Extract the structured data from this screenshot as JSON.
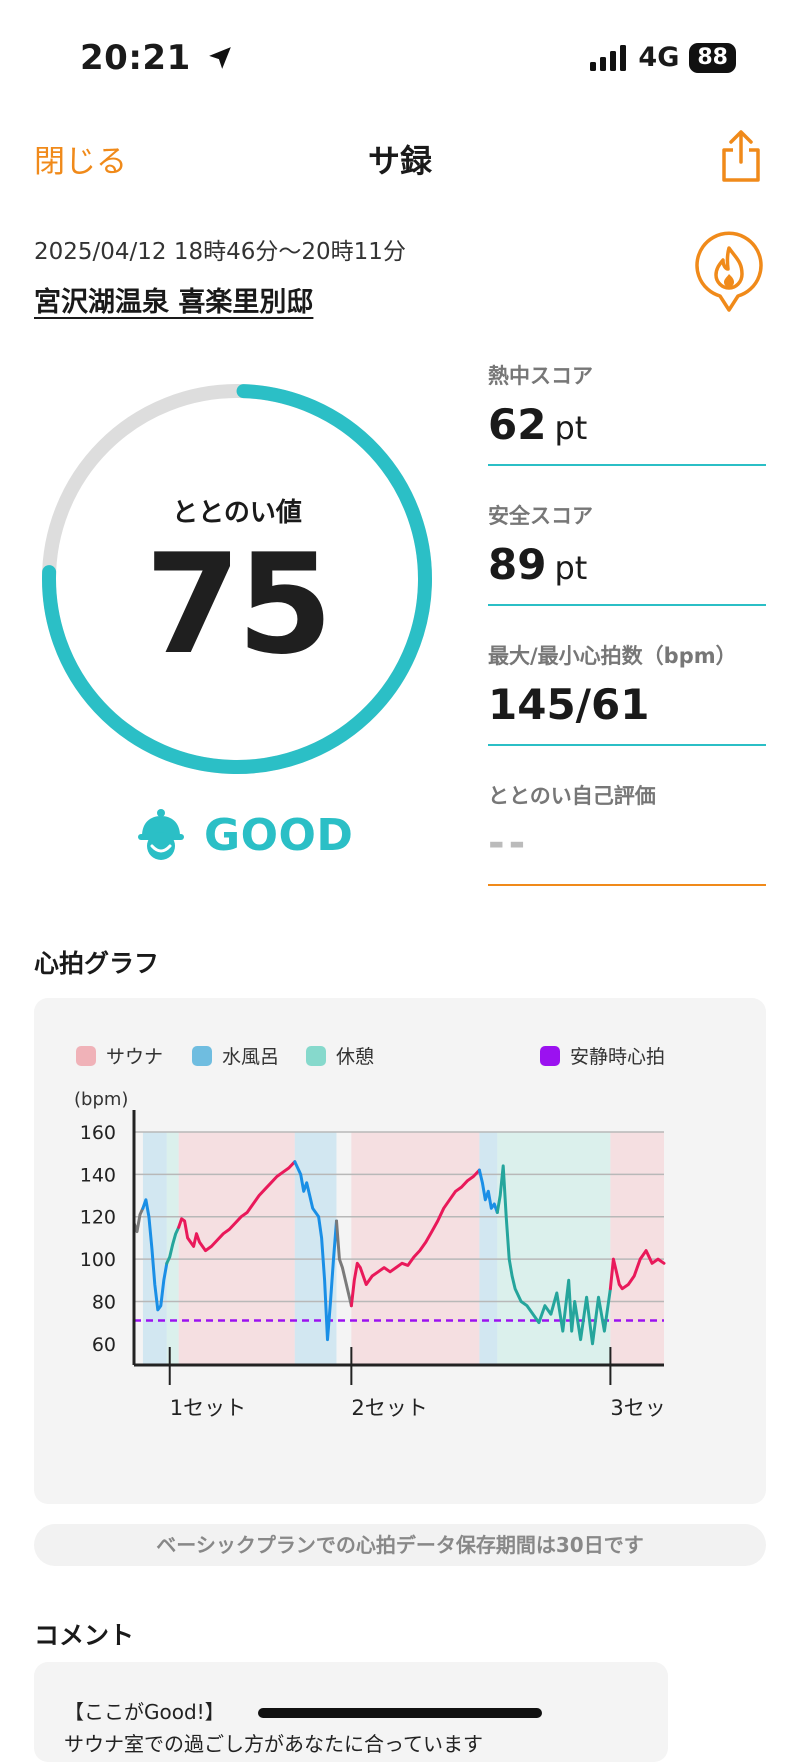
{
  "status_bar": {
    "time": "20:21",
    "network": "4G",
    "battery": "88"
  },
  "nav": {
    "close_label": "閉じる",
    "title": "サ録"
  },
  "visit": {
    "datetime": "2025/04/12 18時46分〜20時11分",
    "place": "宮沢湖温泉 喜楽里別邸"
  },
  "gauge": {
    "label": "ととのい値",
    "value": "75",
    "progress": 0.75,
    "grade": "GOOD"
  },
  "stats": [
    {
      "label": "熱中スコア",
      "value": "62",
      "unit": "pt"
    },
    {
      "label": "安全スコア",
      "value": "89",
      "unit": "pt"
    },
    {
      "label": "最大/最小心拍数（bpm）",
      "value": "145/61",
      "unit": ""
    },
    {
      "label": "ととのい自己評価",
      "value": "--",
      "unit": ""
    }
  ],
  "heart_graph": {
    "title": "心拍グラフ"
  },
  "chart_data": {
    "type": "line",
    "ylabel": "(bpm)",
    "ylim": [
      50,
      160
    ],
    "yticks": [
      60,
      80,
      100,
      120,
      140,
      160
    ],
    "legend": [
      {
        "name": "サウナ",
        "color": "#f0b2b8"
      },
      {
        "name": "水風呂",
        "color": "#6fbde0"
      },
      {
        "name": "休憩",
        "color": "#86d9cc"
      },
      {
        "name": "安静時心拍",
        "color": "#9b12f0"
      }
    ],
    "resting_hr": 71,
    "set_labels": [
      "1セット",
      "2セット",
      "3セッ"
    ],
    "colors": {
      "sauna": "#e9195a",
      "water": "#1a8fe6",
      "rest": "#25a59c",
      "other": "#7a7a7a"
    },
    "t_range": [
      0,
      85
    ],
    "segments": [
      {
        "phase": "other",
        "points": [
          [
            0,
            117
          ],
          [
            0.5,
            113
          ],
          [
            1,
            121
          ],
          [
            1.5,
            124
          ]
        ]
      },
      {
        "phase": "water",
        "points": [
          [
            1.5,
            124
          ],
          [
            2,
            128
          ],
          [
            2.5,
            120
          ],
          [
            3,
            105
          ],
          [
            3.5,
            88
          ],
          [
            4,
            76
          ],
          [
            4.5,
            78
          ],
          [
            5,
            90
          ],
          [
            5.5,
            98
          ]
        ]
      },
      {
        "phase": "rest",
        "points": [
          [
            5.5,
            98
          ],
          [
            6,
            101
          ],
          [
            6.5,
            107
          ],
          [
            7,
            112
          ],
          [
            7.5,
            115
          ]
        ]
      },
      {
        "phase": "sauna",
        "points": [
          [
            7.5,
            115
          ],
          [
            8,
            119
          ],
          [
            8.5,
            118
          ],
          [
            9,
            110
          ],
          [
            10,
            106
          ],
          [
            10.5,
            112
          ],
          [
            11,
            108
          ],
          [
            12,
            104
          ],
          [
            13,
            106
          ],
          [
            14,
            109
          ],
          [
            15,
            112
          ],
          [
            16,
            114
          ],
          [
            17,
            117
          ],
          [
            18,
            120
          ],
          [
            19,
            122
          ],
          [
            20,
            126
          ],
          [
            21,
            130
          ],
          [
            22,
            133
          ],
          [
            23,
            136
          ],
          [
            24,
            139
          ],
          [
            25,
            141
          ],
          [
            26,
            143
          ],
          [
            27,
            146
          ]
        ]
      },
      {
        "phase": "water",
        "points": [
          [
            27,
            146
          ],
          [
            28,
            140
          ],
          [
            28.5,
            132
          ],
          [
            29,
            136
          ],
          [
            29.5,
            130
          ],
          [
            30,
            124
          ],
          [
            31,
            120
          ],
          [
            31.5,
            110
          ],
          [
            32,
            90
          ],
          [
            32.5,
            62
          ],
          [
            33,
            80
          ],
          [
            33.5,
            100
          ],
          [
            34,
            118
          ]
        ]
      },
      {
        "phase": "other",
        "points": [
          [
            34,
            118
          ],
          [
            34.5,
            100
          ],
          [
            35,
            96
          ],
          [
            35.5,
            90
          ],
          [
            36,
            84
          ],
          [
            36.5,
            78
          ]
        ]
      },
      {
        "phase": "sauna",
        "points": [
          [
            36.5,
            78
          ],
          [
            37,
            90
          ],
          [
            37.5,
            98
          ],
          [
            38,
            96
          ],
          [
            39,
            88
          ],
          [
            40,
            92
          ],
          [
            41,
            94
          ],
          [
            42,
            96
          ],
          [
            43,
            94
          ],
          [
            44,
            96
          ],
          [
            45,
            98
          ],
          [
            46,
            97
          ],
          [
            47,
            101
          ],
          [
            48,
            104
          ],
          [
            49,
            108
          ],
          [
            50,
            113
          ],
          [
            51,
            118
          ],
          [
            52,
            124
          ],
          [
            53,
            128
          ],
          [
            54,
            132
          ],
          [
            55,
            134
          ],
          [
            56,
            137
          ],
          [
            57,
            139
          ],
          [
            58,
            142
          ]
        ]
      },
      {
        "phase": "water",
        "points": [
          [
            58,
            142
          ],
          [
            58.5,
            136
          ],
          [
            59,
            128
          ],
          [
            59.5,
            132
          ],
          [
            60,
            124
          ],
          [
            60.5,
            126
          ],
          [
            61,
            122
          ]
        ]
      },
      {
        "phase": "rest",
        "points": [
          [
            61,
            122
          ],
          [
            61.5,
            130
          ],
          [
            62,
            144
          ],
          [
            62.5,
            120
          ],
          [
            63,
            100
          ],
          [
            63.5,
            92
          ],
          [
            64,
            86
          ],
          [
            65,
            80
          ],
          [
            66,
            78
          ],
          [
            67,
            74
          ],
          [
            68,
            70
          ],
          [
            69,
            78
          ],
          [
            70,
            74
          ],
          [
            71,
            84
          ],
          [
            72,
            66
          ],
          [
            73,
            90
          ],
          [
            73.5,
            66
          ],
          [
            74,
            80
          ],
          [
            75,
            62
          ],
          [
            76,
            82
          ],
          [
            77,
            60
          ],
          [
            78,
            82
          ],
          [
            79,
            66
          ],
          [
            80,
            86
          ]
        ]
      },
      {
        "phase": "sauna",
        "points": [
          [
            80,
            86
          ],
          [
            80.5,
            100
          ],
          [
            81,
            94
          ],
          [
            81.5,
            88
          ],
          [
            82,
            86
          ],
          [
            83,
            88
          ],
          [
            84,
            92
          ],
          [
            85,
            100
          ],
          [
            86,
            104
          ],
          [
            87,
            98
          ],
          [
            88,
            100
          ],
          [
            89,
            98
          ]
        ]
      }
    ],
    "bands": [
      {
        "phase": "sauna",
        "from": 7.5,
        "to": 27
      },
      {
        "phase": "water",
        "from": 27,
        "to": 34
      },
      {
        "phase": "sauna",
        "from": 36.5,
        "to": 58
      },
      {
        "phase": "water",
        "from": 58,
        "to": 61
      },
      {
        "phase": "rest",
        "from": 61,
        "to": 80
      },
      {
        "phase": "sauna",
        "from": 80,
        "to": 89
      },
      {
        "phase": "water",
        "from": 1.5,
        "to": 5.5
      },
      {
        "phase": "rest",
        "from": 5.5,
        "to": 7.5
      }
    ],
    "set_marks": [
      6,
      36.5,
      80
    ]
  },
  "note": "ベーシックプランでの心拍データ保存期間は30日です",
  "comment": {
    "title": "コメント",
    "line1": "【ここがGood!】",
    "line2": "サウナ室での過ごし方があなたに合っています"
  }
}
